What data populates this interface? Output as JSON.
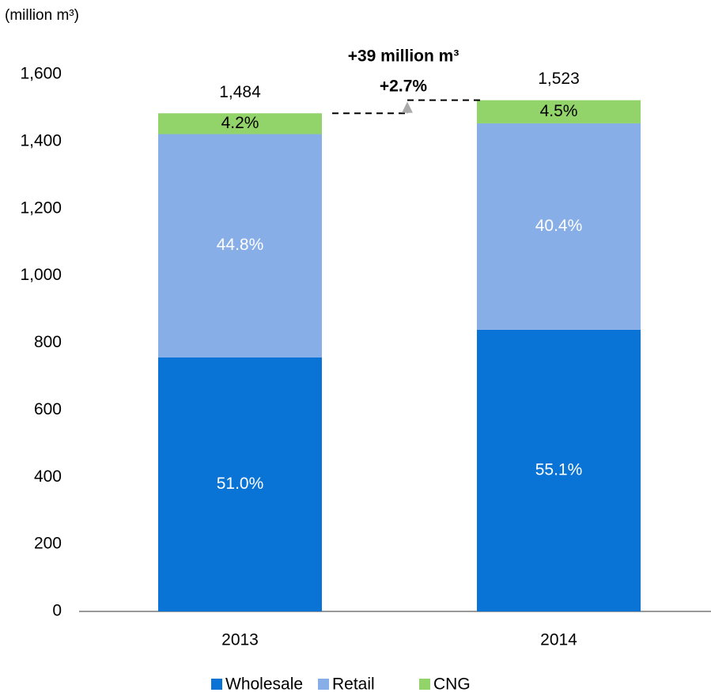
{
  "chart_data": {
    "type": "stacked_bar",
    "y_axis_label": "(million m³)",
    "categories": [
      "2013",
      "2014"
    ],
    "series": [
      {
        "name": "Wholesale",
        "color": "#0a74d6",
        "label_color": "#ffffff",
        "values": [
          757,
          839
        ],
        "value_labels": [
          "51.0%",
          "55.1%"
        ]
      },
      {
        "name": "Retail",
        "color": "#88aee8",
        "label_color": "#ffffff",
        "values": [
          665,
          615
        ],
        "value_labels": [
          "44.8%",
          "40.4%"
        ]
      },
      {
        "name": "CNG",
        "color": "#92d46a",
        "label_color": "#000000",
        "values": [
          62,
          69
        ],
        "value_labels": [
          "4.2%",
          "4.5%"
        ]
      }
    ],
    "totals": [
      1484,
      1523
    ],
    "total_labels": [
      "1,484",
      "1,523"
    ],
    "annotations": [
      "+39 million m³",
      "+2.7%"
    ],
    "ylim": [
      0,
      1600
    ],
    "yticks": [
      0,
      200,
      400,
      600,
      800,
      {
        "value": 1000,
        "label": "1,000"
      },
      {
        "value": 1200,
        "label": "1,200"
      },
      {
        "value": 1400,
        "label": "1,400"
      },
      {
        "value": 1600,
        "label": "1,600"
      }
    ],
    "grid": false,
    "legend": "bottom"
  }
}
